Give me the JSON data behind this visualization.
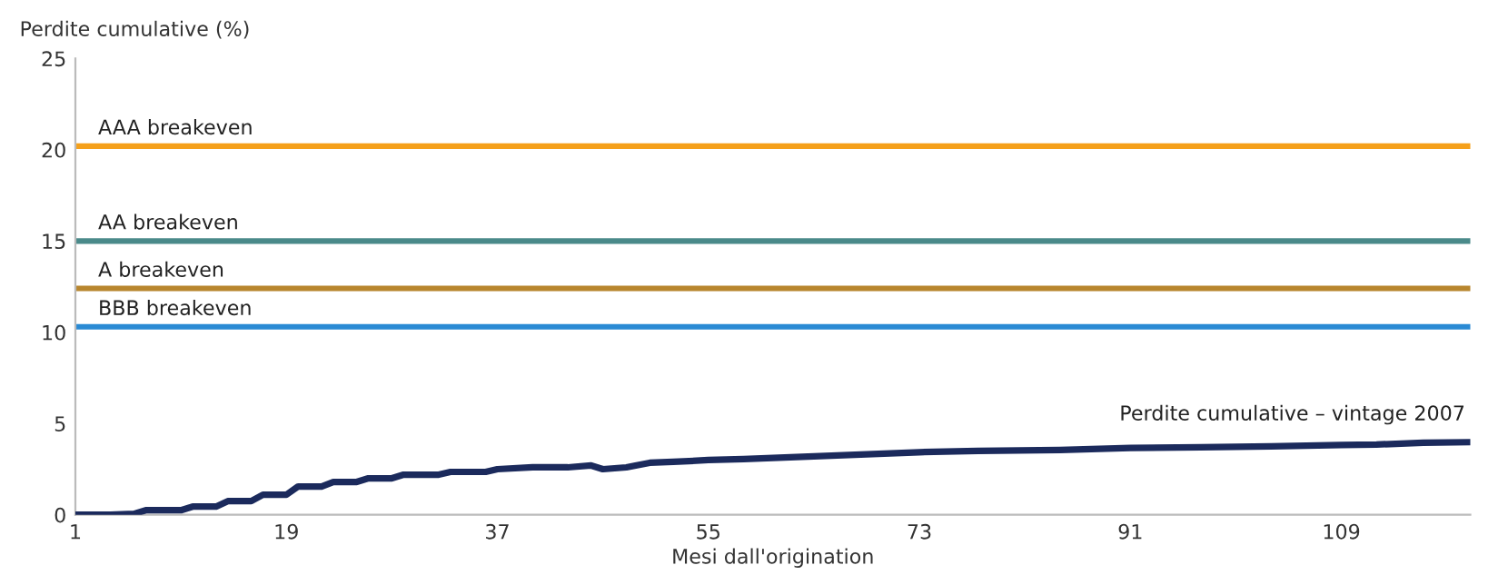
{
  "chart_data": {
    "type": "line",
    "ylabel": "Perdite cumulative (%)",
    "xlabel": "Mesi dall'origination",
    "xlim": [
      1,
      120
    ],
    "xticks": [
      1,
      19,
      37,
      55,
      73,
      91,
      109
    ],
    "ylim": [
      0,
      25
    ],
    "yticks": [
      0,
      5,
      10,
      15,
      20,
      25
    ],
    "grid": false,
    "marker": "none",
    "line_style": "solid",
    "series": [
      {
        "name": "Perdite cumulative – vintage 2007",
        "color": "#1b2a5c",
        "x": [
          1,
          4,
          6,
          7,
          10,
          11,
          13,
          14,
          16,
          17,
          19,
          20,
          22,
          23,
          25,
          26,
          28,
          29,
          32,
          33,
          36,
          37,
          40,
          43,
          45,
          46,
          48,
          50,
          52,
          55,
          58,
          62,
          66,
          70,
          73,
          78,
          85,
          91,
          97,
          103,
          109,
          112,
          116,
          120
        ],
        "values": [
          0,
          0,
          0.05,
          0.25,
          0.25,
          0.45,
          0.45,
          0.75,
          0.75,
          1.1,
          1.1,
          1.55,
          1.55,
          1.8,
          1.8,
          2.0,
          2.0,
          2.2,
          2.2,
          2.35,
          2.35,
          2.5,
          2.6,
          2.6,
          2.7,
          2.5,
          2.6,
          2.85,
          2.9,
          3.0,
          3.05,
          3.15,
          3.25,
          3.35,
          3.43,
          3.5,
          3.55,
          3.66,
          3.7,
          3.75,
          3.82,
          3.85,
          3.95,
          3.98
        ]
      }
    ],
    "ref_lines": [
      {
        "axis": "y",
        "value": 20.2,
        "label": "AAA breakeven",
        "color": "#f5a01a"
      },
      {
        "axis": "y",
        "value": 15.0,
        "label": "AA breakeven",
        "color": "#4a8a8a"
      },
      {
        "axis": "y",
        "value": 12.4,
        "label": "A breakeven",
        "color": "#b8862e"
      },
      {
        "axis": "y",
        "value": 10.3,
        "label": "BBB breakeven",
        "color": "#2a8ad4"
      }
    ]
  }
}
